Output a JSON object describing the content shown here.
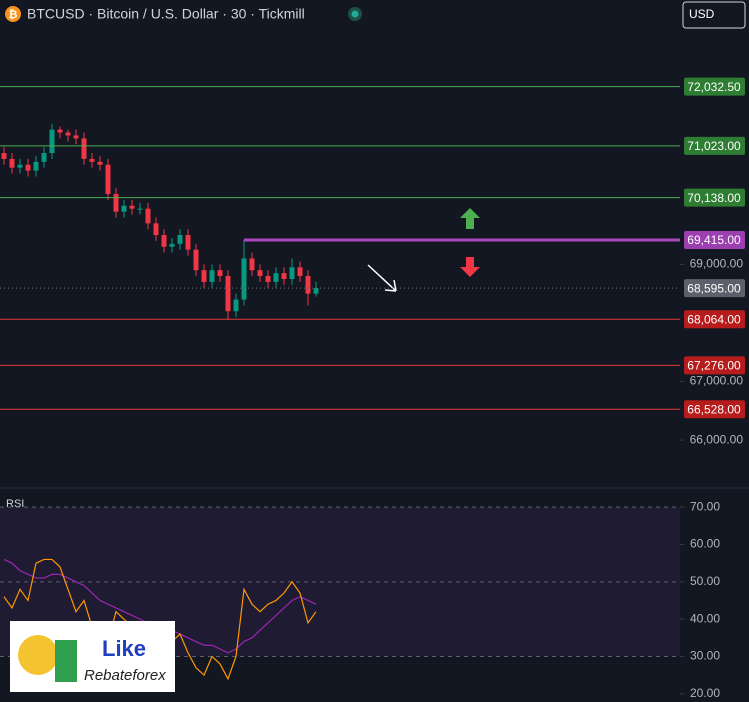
{
  "header": {
    "symbol": "BTCUSD · Bitcoin / U.S. Dollar · 30 · Tickmill",
    "currency": "USD"
  },
  "watermark": {
    "line1": "Like",
    "line2": "Rebateforex"
  },
  "chart_data": [
    {
      "type": "candlestick",
      "ylim": [
        65200,
        73000
      ],
      "yticks": [
        {
          "value": 69000,
          "label": "69,000.00"
        },
        {
          "value": 67000,
          "label": "67,000.00"
        },
        {
          "value": 66000,
          "label": "66,000.00"
        }
      ],
      "up_color": "#089981",
      "down_color": "#f23645",
      "open": [
        70900,
        70800,
        70650,
        70700,
        70600,
        70750,
        70900,
        71300,
        71250,
        71200,
        71150,
        70800,
        70750,
        70700,
        70200,
        69900,
        70000,
        69950,
        69950,
        69700,
        69500,
        69300,
        69350,
        69500,
        69250,
        68900,
        68700,
        68900,
        68800,
        68200,
        68400,
        69100,
        68900,
        68800,
        68700,
        68850,
        68750,
        68950,
        68800,
        68500
      ],
      "high": [
        71000,
        70900,
        70800,
        70800,
        70850,
        71000,
        71400,
        71350,
        71300,
        71300,
        71250,
        70900,
        70850,
        70800,
        70300,
        70100,
        70100,
        70050,
        70050,
        69800,
        69600,
        69450,
        69600,
        69600,
        69350,
        69000,
        69000,
        69000,
        68900,
        68500,
        69415,
        69200,
        69000,
        68900,
        68950,
        68950,
        69100,
        69050,
        68900,
        68700
      ],
      "low": [
        70700,
        70550,
        70550,
        70500,
        70500,
        70650,
        70800,
        71150,
        71100,
        71050,
        70700,
        70650,
        70600,
        70100,
        69800,
        69800,
        69850,
        69850,
        69600,
        69400,
        69200,
        69200,
        69250,
        69150,
        68800,
        68600,
        68600,
        68700,
        68050,
        68100,
        68300,
        68800,
        68700,
        68600,
        68600,
        68650,
        68650,
        68700,
        68300,
        68450
      ],
      "close": [
        70800,
        70650,
        70700,
        70600,
        70750,
        70900,
        71300,
        71250,
        71200,
        71150,
        70800,
        70750,
        70700,
        70200,
        69900,
        70000,
        69950,
        69950,
        69700,
        69500,
        69300,
        69350,
        69500,
        69250,
        68900,
        68700,
        68900,
        68800,
        68200,
        68400,
        69100,
        68900,
        68800,
        68700,
        68850,
        68750,
        68950,
        68800,
        68500,
        68595
      ],
      "levels": [
        {
          "value": 72032.5,
          "label": "72,032.50",
          "color": "#4caf50",
          "label_color": "#2e7d32",
          "style": "solid"
        },
        {
          "value": 71023,
          "label": "71,023.00",
          "color": "#4caf50",
          "label_color": "#2e7d32",
          "style": "solid"
        },
        {
          "value": 70138,
          "label": "70,138.00",
          "color": "#4caf50",
          "label_color": "#2e7d32",
          "style": "solid"
        },
        {
          "value": 69415,
          "label": "69,415.00",
          "color": "#ab47bc",
          "label_color": "#9c3fb0",
          "style": "thick"
        },
        {
          "value": 68595,
          "label": "68,595.00",
          "color": "#6b6e78",
          "label_color": "#5d606b",
          "style": "dotted"
        },
        {
          "value": 68064,
          "label": "68,064.00",
          "color": "#e53935",
          "label_color": "#b71c1c",
          "style": "solid"
        },
        {
          "value": 67276,
          "label": "67,276.00",
          "color": "#e53935",
          "label_color": "#b71c1c",
          "style": "solid"
        },
        {
          "value": 66528,
          "label": "66,528.00",
          "color": "#e53935",
          "label_color": "#b71c1c",
          "style": "solid"
        }
      ]
    },
    {
      "type": "line",
      "title": "RSI",
      "ylim": [
        17.8,
        74.6
      ],
      "yticks": [
        {
          "value": 70,
          "label": "70.00"
        },
        {
          "value": 60,
          "label": "60.00"
        },
        {
          "value": 50,
          "label": "50.00"
        },
        {
          "value": 40,
          "label": "40.00"
        },
        {
          "value": 30,
          "label": "30.00"
        },
        {
          "value": 20,
          "label": "20.00"
        }
      ],
      "dashed_levels": [
        70,
        50,
        30
      ],
      "series": [
        {
          "color": "#ff9800",
          "values": [
            46,
            43,
            48,
            45,
            55,
            56,
            56,
            54,
            48,
            42,
            45,
            38,
            36,
            34,
            42,
            40,
            38,
            36,
            35,
            33,
            32,
            34,
            36,
            31,
            27,
            25,
            30,
            28,
            24,
            30,
            48,
            44,
            42,
            44,
            45,
            47,
            50,
            47,
            39,
            42
          ]
        },
        {
          "color": "#9c27b0",
          "values": [
            56,
            55,
            53,
            52,
            51,
            51,
            52,
            52,
            51,
            50,
            49,
            47,
            45,
            44,
            43,
            42,
            41,
            40,
            39,
            38,
            37,
            37,
            36,
            35,
            34,
            33,
            33,
            32,
            31,
            32,
            34,
            35,
            37,
            39,
            41,
            43,
            45,
            46,
            45,
            44
          ]
        }
      ]
    }
  ]
}
